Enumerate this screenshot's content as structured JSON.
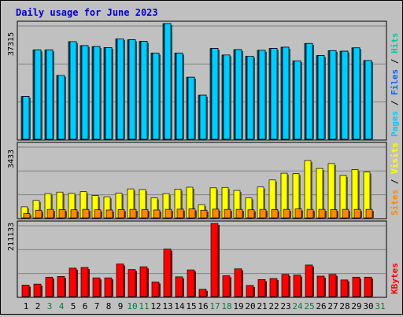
{
  "title": "Daily usage for June 2023",
  "colors": {
    "background": "#c0c0c0",
    "title": "#0000cc",
    "panel_border": "#000000",
    "hits": "#00cc99",
    "files": "#0066ff",
    "pages": "#00ccff",
    "visits": "#ffff00",
    "sites": "#ff8800",
    "kbytes": "#ff0000",
    "weekend_day": "#008040",
    "weekday": "#000000"
  },
  "chart_data": [
    {
      "type": "bar",
      "panel": "top",
      "max_label": "37315",
      "ylim": [
        0,
        37315
      ],
      "legend": [
        "Pages",
        "Files",
        "Hits"
      ],
      "x": [
        1,
        2,
        3,
        4,
        5,
        6,
        7,
        8,
        9,
        10,
        11,
        12,
        13,
        14,
        15,
        16,
        17,
        18,
        19,
        20,
        21,
        22,
        23,
        24,
        25,
        26,
        27,
        28,
        29,
        30
      ],
      "series": [
        {
          "name": "Hits",
          "values": [
            13800,
            28800,
            28800,
            20600,
            31500,
            30200,
            29900,
            29600,
            32400,
            32100,
            31600,
            27800,
            37315,
            27800,
            20000,
            14200,
            29300,
            27200,
            28900,
            26800,
            28700,
            29300,
            29700,
            25300,
            30900,
            27000,
            28600,
            28400,
            29500,
            25400
          ]
        },
        {
          "name": "Files",
          "values": [
            13800,
            28800,
            28800,
            20600,
            31500,
            30200,
            29900,
            29600,
            32400,
            32100,
            31600,
            27800,
            37315,
            27800,
            20000,
            14200,
            29300,
            27200,
            28900,
            26800,
            28700,
            29300,
            29700,
            25300,
            30900,
            27000,
            28600,
            28400,
            29500,
            25400
          ]
        },
        {
          "name": "Pages",
          "values": [
            13800,
            28800,
            28800,
            20600,
            31500,
            30200,
            29900,
            29600,
            32400,
            32100,
            31600,
            27800,
            37315,
            27800,
            20000,
            14200,
            29300,
            27200,
            28900,
            26800,
            28700,
            29300,
            29700,
            25300,
            30900,
            27000,
            28600,
            28400,
            29500,
            25400
          ]
        }
      ]
    },
    {
      "type": "bar",
      "panel": "middle",
      "max_label": "3433",
      "ylim": [
        0,
        3433
      ],
      "legend": [
        "Sites",
        "Visits"
      ],
      "x": [
        1,
        2,
        3,
        4,
        5,
        6,
        7,
        8,
        9,
        10,
        11,
        12,
        13,
        14,
        15,
        16,
        17,
        18,
        19,
        20,
        21,
        22,
        23,
        24,
        25,
        26,
        27,
        28,
        29,
        30
      ],
      "series": [
        {
          "name": "Visits",
          "values": [
            520,
            820,
            1140,
            1210,
            1150,
            1230,
            1050,
            990,
            1160,
            1360,
            1330,
            940,
            1140,
            1350,
            1440,
            620,
            1410,
            1430,
            1290,
            940,
            1450,
            1780,
            2100,
            2080,
            2690,
            2320,
            2550,
            1990,
            2270,
            2150
          ]
        },
        {
          "name": "Sites",
          "values": [
            200,
            360,
            400,
            390,
            380,
            400,
            380,
            370,
            390,
            400,
            390,
            370,
            400,
            410,
            420,
            360,
            410,
            400,
            400,
            380,
            400,
            390,
            400,
            420,
            400,
            400,
            390,
            400,
            400,
            400
          ]
        }
      ]
    },
    {
      "type": "bar",
      "panel": "bottom",
      "max_label": "211133",
      "ylim": [
        0,
        211133
      ],
      "legend": [
        "KBytes"
      ],
      "x": [
        1,
        2,
        3,
        4,
        5,
        6,
        7,
        8,
        9,
        10,
        11,
        12,
        13,
        14,
        15,
        16,
        17,
        18,
        19,
        20,
        21,
        22,
        23,
        24,
        25,
        26,
        27,
        28,
        29,
        30
      ],
      "series": [
        {
          "name": "KBytes",
          "values": [
            33000,
            36000,
            56000,
            58000,
            82000,
            84000,
            54000,
            54000,
            94000,
            78000,
            86000,
            42000,
            137000,
            57000,
            77000,
            21000,
            211133,
            60000,
            80000,
            32000,
            49000,
            52000,
            64000,
            62000,
            91000,
            59000,
            64000,
            48000,
            56000,
            56000
          ]
        }
      ]
    }
  ],
  "x_axis": {
    "labels": [
      "1",
      "2",
      "3",
      "4",
      "5",
      "6",
      "7",
      "8",
      "9",
      "10",
      "11",
      "12",
      "13",
      "14",
      "15",
      "16",
      "17",
      "18",
      "19",
      "20",
      "21",
      "22",
      "23",
      "24",
      "25",
      "26",
      "27",
      "28",
      "29",
      "30",
      "31"
    ],
    "weekend": [
      3,
      4,
      10,
      11,
      17,
      18,
      24,
      25,
      31
    ]
  }
}
